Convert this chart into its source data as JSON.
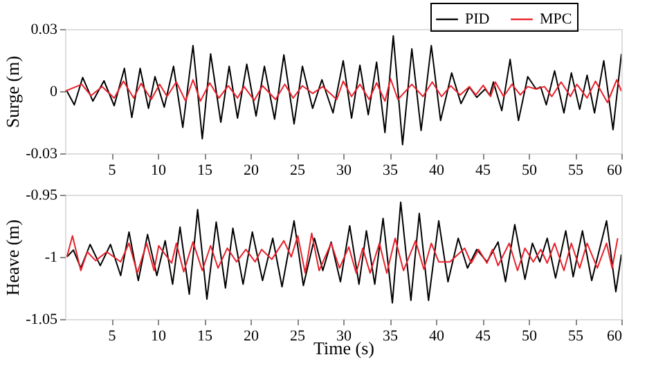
{
  "chart_data": [
    {
      "type": "line",
      "ylabel": "Surge (m)",
      "xlim": [
        0,
        60
      ],
      "xticks": [
        5,
        10,
        15,
        20,
        25,
        30,
        35,
        40,
        45,
        50,
        55,
        60
      ],
      "ylim": [
        -0.03,
        0.03
      ],
      "yticks": [
        -0.03,
        0,
        0.03
      ],
      "legend": "top right",
      "series": [
        {
          "name": "PID",
          "color": "#000000",
          "x": [
            0.2,
            1.0,
            1.9,
            3.0,
            4.2,
            5.3,
            6.4,
            7.2,
            8.1,
            9.0,
            9.7,
            10.7,
            11.7,
            12.7,
            13.8,
            14.8,
            15.7,
            16.8,
            17.7,
            18.6,
            19.6,
            20.6,
            21.5,
            22.6,
            23.6,
            24.7,
            25.6,
            26.7,
            27.7,
            28.9,
            30.0,
            30.9,
            31.8,
            32.7,
            33.6,
            34.5,
            35.4,
            36.4,
            37.4,
            38.4,
            39.5,
            40.5,
            41.7,
            42.7,
            43.6,
            44.4,
            45.3,
            45.8,
            46.2,
            47.1,
            48.0,
            48.9,
            49.9,
            50.8,
            51.3,
            51.9,
            52.8,
            53.8,
            54.6,
            55.5,
            56.3,
            57.1,
            58.1,
            59.1,
            60.0
          ],
          "values": [
            0,
            -0.0066,
            0.0066,
            -0.0048,
            0.005,
            -0.007,
            0.011,
            -0.0127,
            0.011,
            -0.0083,
            0.007,
            -0.0077,
            0.012,
            -0.0175,
            0.022,
            -0.023,
            0.018,
            -0.015,
            0.012,
            -0.013,
            0.013,
            -0.012,
            0.012,
            -0.0135,
            0.0175,
            -0.0158,
            0.012,
            -0.0083,
            0.0055,
            -0.0105,
            0.0147,
            -0.013,
            0.0125,
            -0.0114,
            0.014,
            -0.02,
            0.0267,
            -0.0258,
            0.0204,
            -0.019,
            0.022,
            -0.0142,
            0.0088,
            -0.006,
            0.002,
            -0.003,
            0.001,
            -0.002,
            0.0044,
            -0.0094,
            0.0153,
            -0.0142,
            0.007,
            0.001,
            0.002,
            -0.0066,
            0.0098,
            -0.0105,
            0.0088,
            -0.0088,
            0.0077,
            -0.0105,
            0.0147,
            -0.0186,
            0.018
          ]
        },
        {
          "name": "MPC",
          "color": "#e8202a",
          "x": [
            0,
            1.8,
            2.8,
            4.0,
            5.3,
            6.3,
            7.4,
            8.2,
            9.3,
            10.2,
            11.0,
            12.0,
            13.0,
            13.8,
            14.6,
            15.6,
            16.6,
            17.6,
            18.6,
            19.3,
            20.4,
            21.3,
            22.7,
            23.7,
            24.6,
            25.6,
            26.7,
            27.8,
            29.3,
            30.0,
            30.9,
            31.8,
            32.8,
            33.6,
            34.5,
            35.1,
            35.9,
            37.4,
            38.6,
            39.6,
            40.6,
            41.6,
            42.6,
            43.6,
            44.3,
            45.1,
            45.9,
            46.4,
            47.3,
            48.2,
            49.1,
            49.9,
            50.8,
            51.7,
            52.5,
            53.5,
            54.5,
            55.2,
            56.3,
            57.2,
            58.5,
            59.5,
            60.0
          ],
          "values": [
            0,
            0.0033,
            -0.0022,
            0.0022,
            -0.0033,
            0.0048,
            -0.0033,
            0.0037,
            -0.004,
            0.0033,
            -0.0026,
            0.0044,
            -0.0048,
            0.0055,
            -0.0048,
            0.004,
            -0.0033,
            0.0026,
            -0.0033,
            0.0022,
            -0.0044,
            0.0026,
            -0.004,
            0.0033,
            -0.0033,
            0.0026,
            -0.0011,
            0.0022,
            -0.004,
            0.0048,
            -0.0026,
            0.0033,
            -0.004,
            0.004,
            -0.0048,
            0.006,
            -0.004,
            0.0033,
            -0.0026,
            0.0044,
            -0.0026,
            0.0026,
            -0.0018,
            0.0022,
            -0.0018,
            0.0028,
            -0.0026,
            0.0044,
            -0.0026,
            0.0033,
            -0.0018,
            0.0022,
            0.001,
            0.0022,
            -0.0026,
            0.0044,
            -0.0026,
            0.0033,
            -0.0033,
            0.0048,
            -0.0055,
            0.0055,
            0
          ]
        }
      ]
    },
    {
      "type": "line",
      "xlabel": "Time (s)",
      "ylabel": "Heave (m)",
      "xlim": [
        0,
        60
      ],
      "xticks": [
        5,
        10,
        15,
        20,
        25,
        30,
        35,
        40,
        45,
        50,
        55,
        60
      ],
      "ylim": [
        -1.05,
        -0.95
      ],
      "yticks": [
        -1.05,
        -1,
        -0.95
      ],
      "series": [
        {
          "color": "#000000",
          "x": [
            0.2,
            0.9,
            1.7,
            2.7,
            3.8,
            4.9,
            6.0,
            6.9,
            7.9,
            8.9,
            9.9,
            10.8,
            11.6,
            12.4,
            13.4,
            14.3,
            15.3,
            16.3,
            17.3,
            18.1,
            19.2,
            20.2,
            21.3,
            22.4,
            23.4,
            24.7,
            25.7,
            26.9,
            27.8,
            28.7,
            29.7,
            30.7,
            31.7,
            32.5,
            33.4,
            34.3,
            35.3,
            36.2,
            37.3,
            38.2,
            39.2,
            40.3,
            41.3,
            42.4,
            43.4,
            44.4,
            45.5,
            46.7,
            47.5,
            48.5,
            49.6,
            50.4,
            51.2,
            52.0,
            52.9,
            54.0,
            54.8,
            55.8,
            56.8,
            58.4,
            59.4,
            60.0
          ],
          "values": [
            -1.0,
            -0.9945,
            -1.009,
            -0.99,
            -1.007,
            -0.99,
            -1.015,
            -0.98,
            -1.019,
            -0.982,
            -1.015,
            -0.987,
            -1.022,
            -0.976,
            -1.03,
            -0.962,
            -1.034,
            -0.972,
            -1.025,
            -0.977,
            -1.022,
            -0.98,
            -1.019,
            -0.985,
            -1.024,
            -0.971,
            -1.023,
            -0.985,
            -1.011,
            -0.988,
            -1.02,
            -0.975,
            -1.022,
            -0.979,
            -1.022,
            -0.969,
            -1.037,
            -0.956,
            -1.035,
            -0.965,
            -1.035,
            -0.971,
            -1.02,
            -0.985,
            -1.009,
            -0.994,
            -1.004,
            -0.988,
            -1.02,
            -0.974,
            -1.018,
            -0.989,
            -1.004,
            -0.985,
            -1.017,
            -0.979,
            -1.016,
            -0.979,
            -1.019,
            -0.971,
            -1.028,
            -0.998
          ]
        },
        {
          "color": "#e8202a",
          "x": [
            0.2,
            0.8,
            1.7,
            2.4,
            3.3,
            4.5,
            6.0,
            6.9,
            7.8,
            8.8,
            9.6,
            10.1,
            11.5,
            12.0,
            12.8,
            13.8,
            14.8,
            15.7,
            16.5,
            17.5,
            18.5,
            19.5,
            20.5,
            21.2,
            22.3,
            23.6,
            24.4,
            25.1,
            25.9,
            26.6,
            27.4,
            28.7,
            29.6,
            30.6,
            31.4,
            32.1,
            32.9,
            33.9,
            34.7,
            35.6,
            36.5,
            37.8,
            38.7,
            39.5,
            40.3,
            41.5,
            43.1,
            43.8,
            44.6,
            45.5,
            46.1,
            46.7,
            47.9,
            48.8,
            49.6,
            50.5,
            51.3,
            52.0,
            52.8,
            53.8,
            54.6,
            55.5,
            56.3,
            57.4,
            58.4,
            59.0,
            59.6
          ],
          "values": [
            -1.0,
            -0.983,
            -1.011,
            -0.996,
            -1.003,
            -0.996,
            -1.004,
            -0.989,
            -1.013,
            -0.989,
            -1.011,
            -0.991,
            -1.005,
            -0.989,
            -1.012,
            -0.988,
            -1.011,
            -0.991,
            -1.009,
            -0.993,
            -1.004,
            -0.994,
            -1.004,
            -0.994,
            -1.002,
            -0.987,
            -1.0,
            -0.983,
            -1.013,
            -0.981,
            -1.011,
            -0.989,
            -1.009,
            -0.992,
            -1.013,
            -0.993,
            -1.013,
            -0.989,
            -1.013,
            -0.985,
            -1.011,
            -0.987,
            -1.01,
            -0.989,
            -1.004,
            -1.004,
            -0.993,
            -1.005,
            -0.994,
            -1.005,
            -0.994,
            -1.007,
            -0.989,
            -1.011,
            -0.993,
            -1.004,
            -0.994,
            -1.005,
            -0.989,
            -1.011,
            -0.989,
            -1.009,
            -0.989,
            -1.009,
            -0.989,
            -1.009,
            -0.985
          ]
        }
      ]
    }
  ]
}
